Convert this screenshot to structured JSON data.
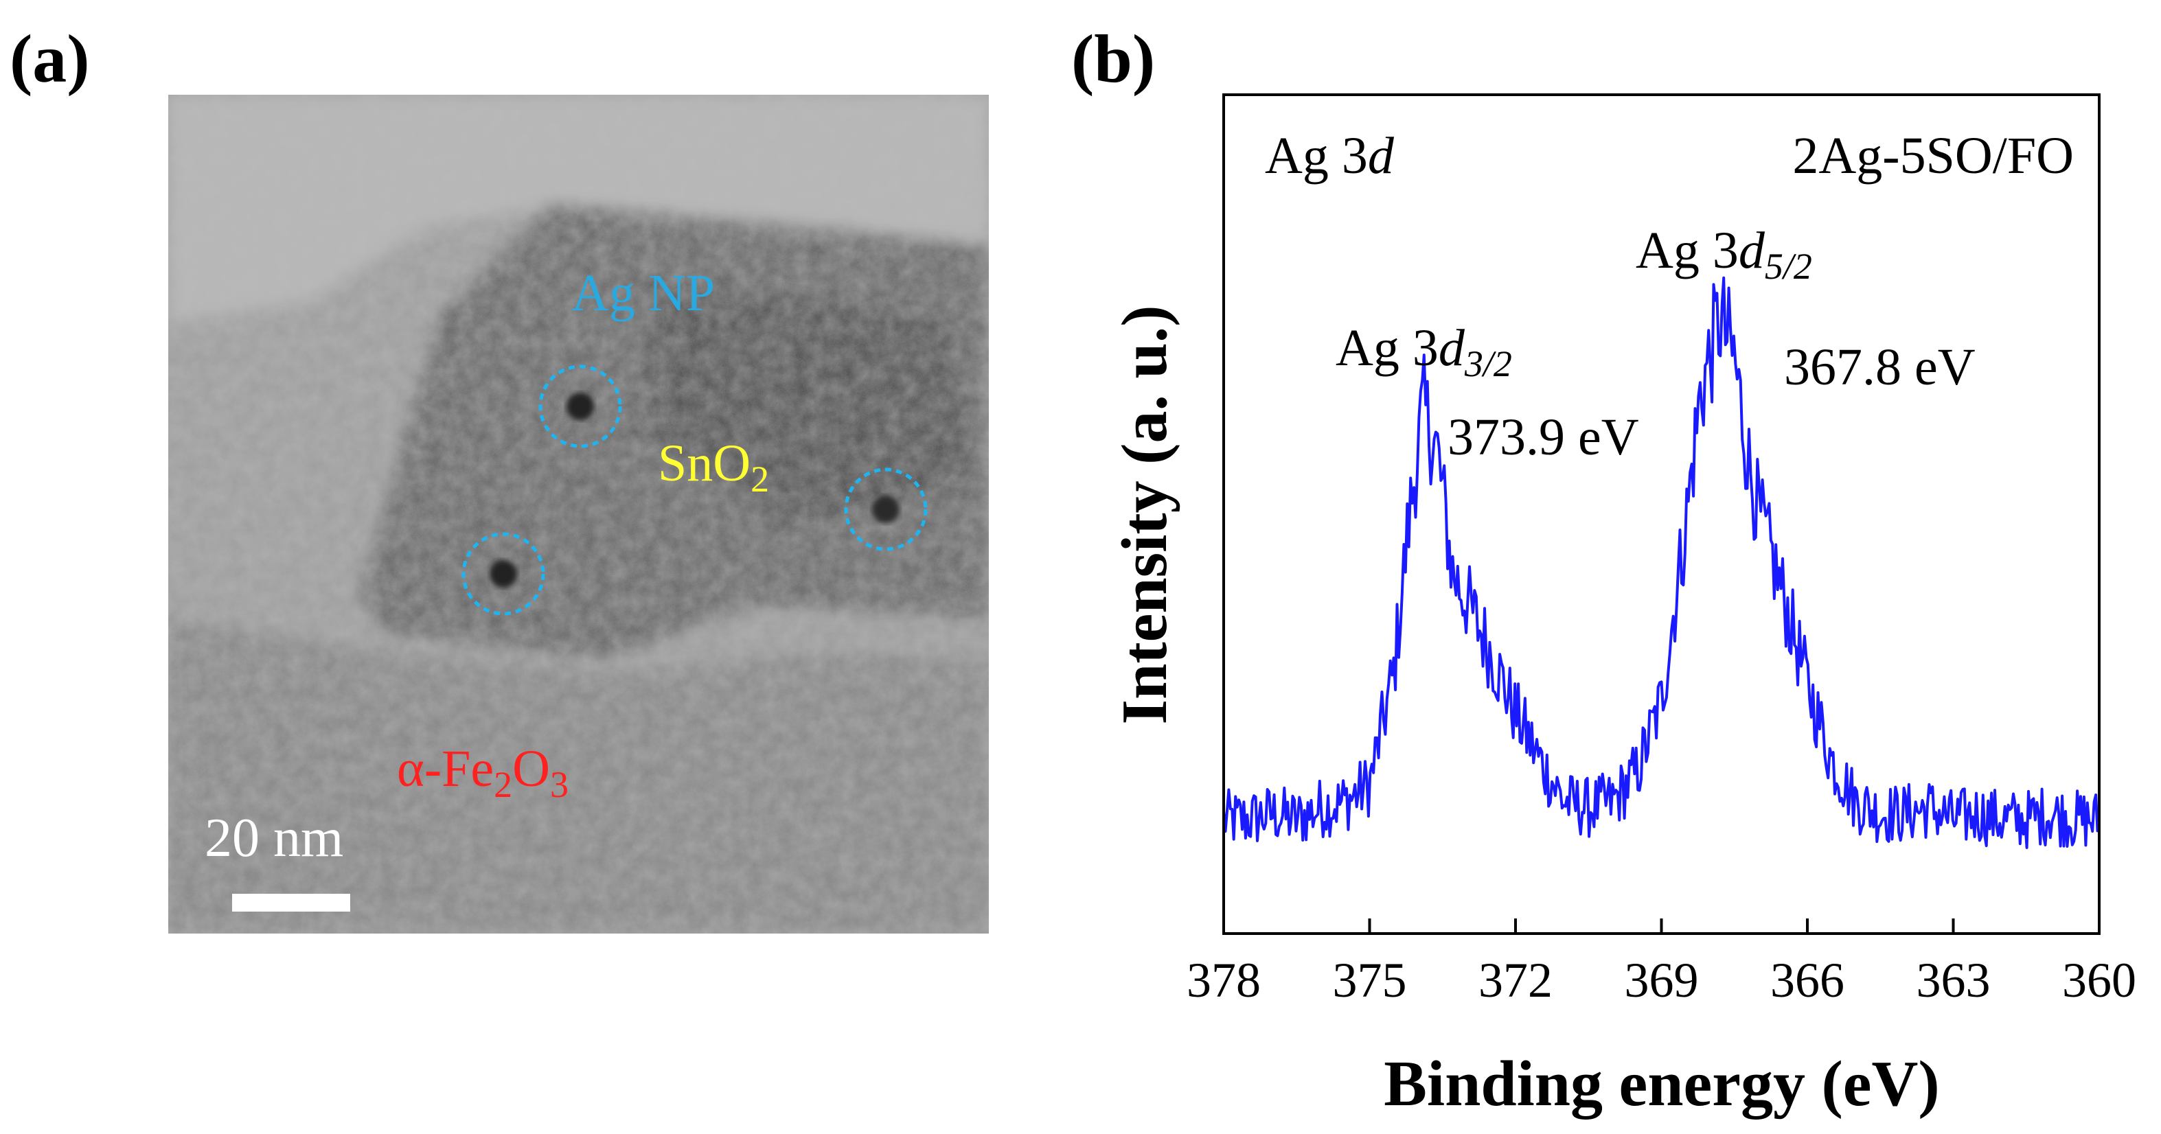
{
  "figure": {
    "panel_a_label": "(a)",
    "panel_b_label": "(b)"
  },
  "tem_image": {
    "annotations": {
      "ag_np": "Ag NP",
      "sno2_main": "SnO",
      "sno2_sub": "2",
      "fe2o3_prefix": "α-Fe",
      "fe2o3_sub1": "2",
      "fe2o3_mid": "O",
      "fe2o3_sub2": "3",
      "scale_bar": "20 nm"
    },
    "annotation_colors": {
      "ag_np": "#29a9e0",
      "sno2": "#ffff33",
      "fe2o3": "#ff2020",
      "scale_bar": "#ffffff",
      "nanoparticle_circles": "#1fb4f0"
    }
  },
  "chart_data": {
    "type": "line",
    "xlabel": "Binding energy (eV)",
    "ylabel": "Intensity (a. u.)",
    "xlim": [
      378,
      360
    ],
    "x_reversed": true,
    "x_ticks": [
      378,
      375,
      372,
      369,
      366,
      363,
      360
    ],
    "y_ticks_visible": false,
    "series_color": "#1a1aff",
    "inset_labels": {
      "region": "Ag 3",
      "region_italic": "d",
      "sample": "2Ag-5SO/FO"
    },
    "peaks": [
      {
        "label_main": "Ag 3",
        "label_italic": "d",
        "label_sub": "3/2",
        "energy_label": "373.9 eV",
        "x": 373.9,
        "height": 0.82
      },
      {
        "label_main": "Ag 3",
        "label_italic": "d",
        "label_sub": "5/2",
        "energy_label": "367.8 eV",
        "x": 367.8,
        "height": 1.0
      }
    ],
    "series": [
      {
        "x": [
          378,
          377.5,
          377,
          376.5,
          376,
          375.5,
          375,
          374.5,
          374.2,
          373.9,
          373.6,
          373.3,
          373,
          372.5,
          372,
          371.5,
          371,
          370.5,
          370,
          369.5,
          369,
          368.5,
          368.2,
          367.8,
          367.5,
          367.2,
          367,
          366.5,
          366,
          365.5,
          365,
          364.5,
          364,
          363.5,
          363,
          362.5,
          362,
          361.5,
          361,
          360.5,
          360
        ],
        "y": [
          0.1,
          0.1,
          0.11,
          0.1,
          0.12,
          0.13,
          0.16,
          0.35,
          0.6,
          0.8,
          0.72,
          0.52,
          0.47,
          0.38,
          0.28,
          0.2,
          0.13,
          0.12,
          0.13,
          0.18,
          0.3,
          0.6,
          0.82,
          0.95,
          0.88,
          0.7,
          0.62,
          0.48,
          0.33,
          0.2,
          0.13,
          0.11,
          0.11,
          0.12,
          0.1,
          0.11,
          0.1,
          0.1,
          0.11,
          0.1,
          0.1
        ]
      }
    ]
  }
}
